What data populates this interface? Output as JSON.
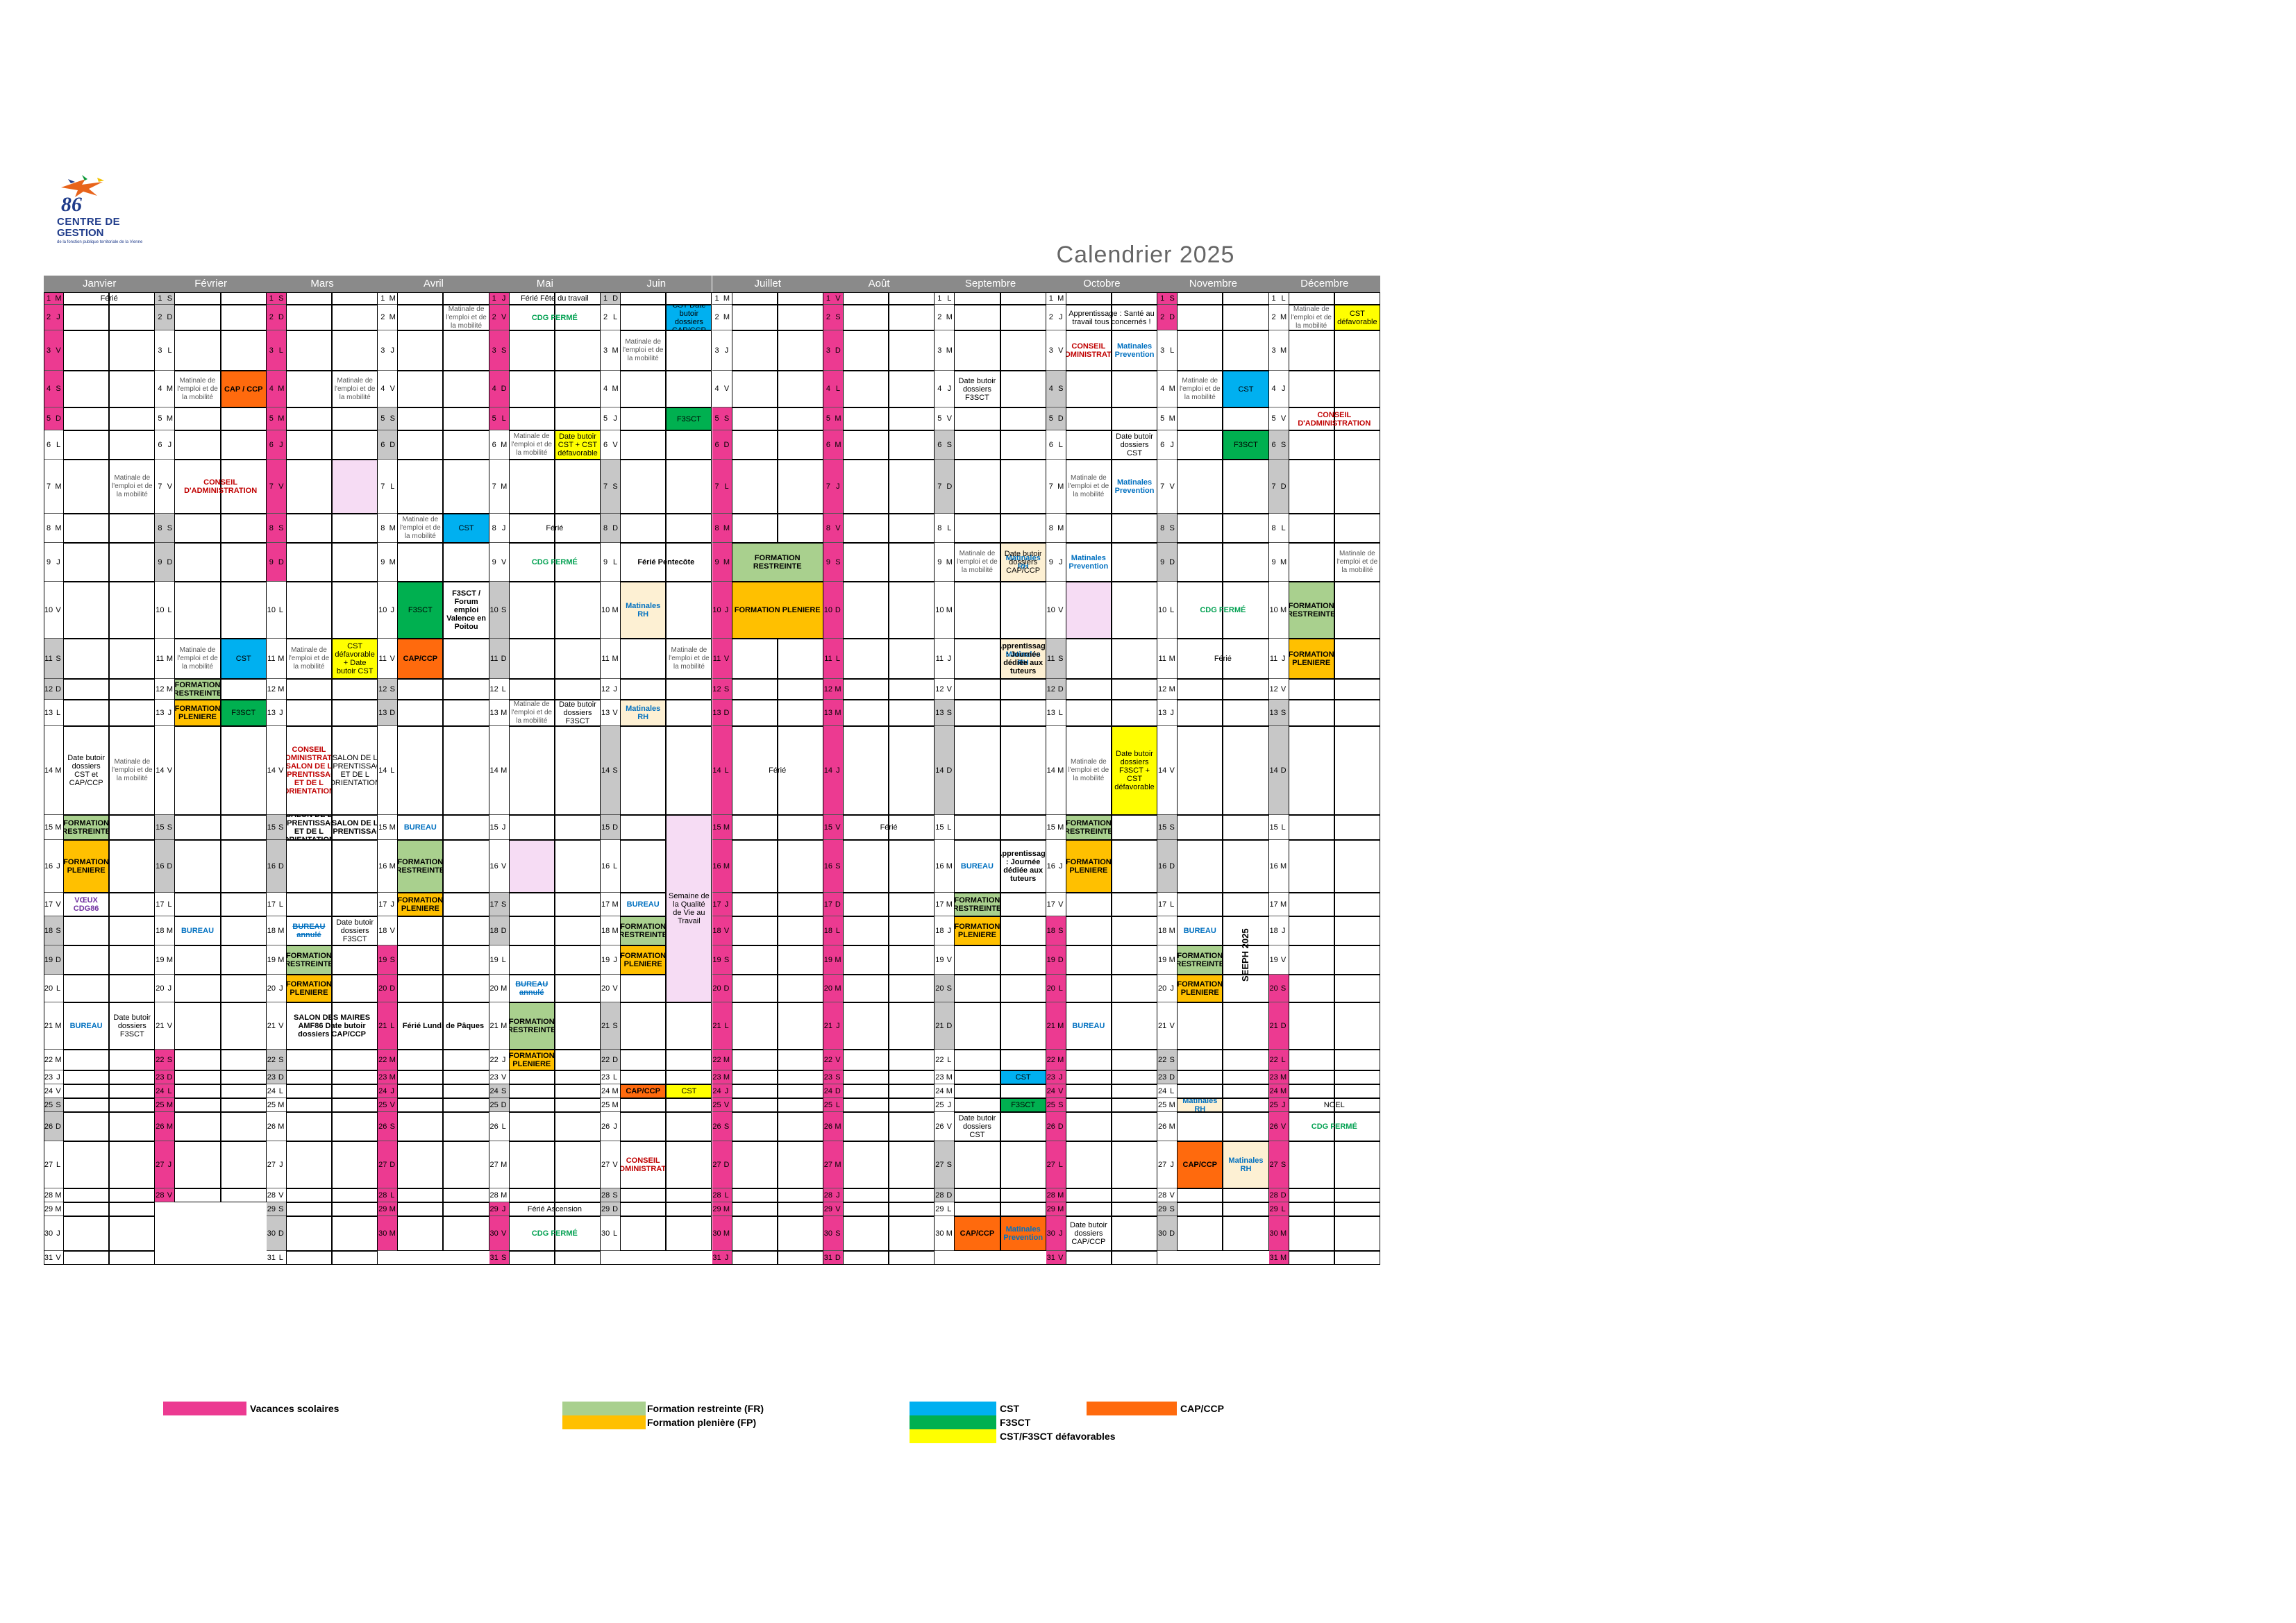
{
  "logo": {
    "number": "86",
    "line1": "CENTRE DE",
    "line2": "GESTION",
    "line3": "de la fonction publique territoriale de la Vienne"
  },
  "title": "Calendrier  2025",
  "months": [
    "Janvier",
    "Février",
    "Mars",
    "Avril",
    "Mai",
    "Juin",
    "Juillet",
    "Août",
    "Septembre",
    "Octobre",
    "Novembre",
    "Décembre"
  ],
  "colors": {
    "vacances": "#ec3a91",
    "fr": "#a9d08e",
    "fp": "#ffc000",
    "cst": "#00b0f0",
    "f3sct": "#00b050",
    "cap": "#ff6a0d",
    "def": "#ffff00",
    "weekend": "#c7c7c7"
  },
  "events": [
    {
      "m": 0,
      "d": 1,
      "col": "a",
      "text": "Férié",
      "cls": "",
      "span": 1,
      "wide": true
    },
    {
      "m": 0,
      "d": 7,
      "col": "b",
      "text": "Matinale de l'emploi et de la mobilité",
      "cls": "gry"
    },
    {
      "m": 0,
      "d": 14,
      "col": "a",
      "text": "Date butoir dossiers CST et CAP/CCP",
      "cls": ""
    },
    {
      "m": 0,
      "d": 14,
      "col": "b",
      "text": "Matinale de l'emploi et de la mobilité",
      "cls": "gry"
    },
    {
      "m": 0,
      "d": 15,
      "col": "a",
      "text": "FORMATION RESTREINTE",
      "cls": "fr b"
    },
    {
      "m": 0,
      "d": 16,
      "col": "a",
      "text": "FORMATION PLENIERE",
      "cls": "fp b"
    },
    {
      "m": 0,
      "d": 17,
      "col": "a",
      "text": "VŒUX CDG86",
      "cls": "pur"
    },
    {
      "m": 0,
      "d": 21,
      "col": "a",
      "text": "BUREAU",
      "cls": "blu"
    },
    {
      "m": 0,
      "d": 21,
      "col": "b",
      "text": "Date butoir dossiers F3SCT",
      "cls": ""
    },
    {
      "m": 1,
      "d": 4,
      "col": "a",
      "text": "Matinale de l'emploi et de la mobilité",
      "cls": "gry"
    },
    {
      "m": 1,
      "d": 4,
      "col": "b",
      "text": "CAP / CCP",
      "cls": "cap b"
    },
    {
      "m": 1,
      "d": 7,
      "col": "a",
      "text": "CONSEIL D'ADMINISTRATION",
      "cls": "red",
      "wide": true
    },
    {
      "m": 1,
      "d": 11,
      "col": "a",
      "text": "Matinale de l'emploi et de la mobilité",
      "cls": "gry"
    },
    {
      "m": 1,
      "d": 11,
      "col": "b",
      "text": "CST",
      "cls": "cst"
    },
    {
      "m": 1,
      "d": 12,
      "col": "a",
      "text": "FORMATION RESTREINTE",
      "cls": "fr b"
    },
    {
      "m": 1,
      "d": 13,
      "col": "a",
      "text": "FORMATION PLENIERE",
      "cls": "fp b"
    },
    {
      "m": 1,
      "d": 13,
      "col": "b",
      "text": "F3SCT",
      "cls": "f3"
    },
    {
      "m": 1,
      "d": 18,
      "col": "a",
      "text": "BUREAU",
      "cls": "blu"
    },
    {
      "m": 2,
      "d": 4,
      "col": "b",
      "text": "Matinale de l'emploi et de la mobilité",
      "cls": "gry"
    },
    {
      "m": 2,
      "d": 7,
      "col": "b",
      "text": "",
      "cls": "pk"
    },
    {
      "m": 2,
      "d": 11,
      "col": "a",
      "text": "Matinale de l'emploi et de la mobilité",
      "cls": "gry",
      "half": true
    },
    {
      "m": 2,
      "d": 11,
      "col": "b",
      "text": "CST défavorable + Date butoir CST",
      "cls": "def"
    },
    {
      "m": 2,
      "d": 14,
      "col": "a",
      "text": "CONSEIL D'ADMINISTRATION SALON DE L APPRENTISSAGE ET DE L ORIENTATION",
      "cls": "red"
    },
    {
      "m": 2,
      "d": 14,
      "col": "b",
      "text": "SALON DE L APPRENTISSAGE ET DE L ORIENTATION",
      "cls": ""
    },
    {
      "m": 2,
      "d": 15,
      "col": "a",
      "text": "SALON DE L APPRENTISSAGE ET DE L ORIENTATION",
      "cls": "b"
    },
    {
      "m": 2,
      "d": 15,
      "col": "b",
      "text": "SALON DE L APPRENTISSAGE",
      "cls": "b"
    },
    {
      "m": 2,
      "d": 18,
      "col": "a",
      "text": "BUREAU annulé",
      "cls": "blu strike"
    },
    {
      "m": 2,
      "d": 18,
      "col": "b",
      "text": "Date butoir dossiers F3SCT",
      "cls": ""
    },
    {
      "m": 2,
      "d": 19,
      "col": "a",
      "text": "FORMATION RESTREINTE",
      "cls": "fr b"
    },
    {
      "m": 2,
      "d": 20,
      "col": "a",
      "text": "FORMATION PLENIERE",
      "cls": "fp b"
    },
    {
      "m": 2,
      "d": 21,
      "col": "a",
      "text": "SALON DES MAIRES AMF86 Date butoir dossiers CAP/CCP",
      "cls": "b",
      "wide": true
    },
    {
      "m": 3,
      "d": 2,
      "col": "b",
      "text": "Matinale de l'emploi et de la mobilité",
      "cls": "gry"
    },
    {
      "m": 3,
      "d": 8,
      "col": "a",
      "text": "Matinale de l'emploi et de la mobilité",
      "cls": "gry"
    },
    {
      "m": 3,
      "d": 8,
      "col": "b",
      "text": "CST",
      "cls": "cst"
    },
    {
      "m": 3,
      "d": 10,
      "col": "a",
      "text": "F3SCT",
      "cls": "f3"
    },
    {
      "m": 3,
      "d": 10,
      "col": "b",
      "text": "F3SCT / Forum emploi Valence en Poitou",
      "cls": "b"
    },
    {
      "m": 3,
      "d": 11,
      "col": "a",
      "text": "CAP/CCP",
      "cls": "cap b"
    },
    {
      "m": 3,
      "d": 15,
      "col": "a",
      "text": "BUREAU",
      "cls": "blu"
    },
    {
      "m": 3,
      "d": 16,
      "col": "a",
      "text": "FORMATION RESTREINTE",
      "cls": "fr b"
    },
    {
      "m": 3,
      "d": 17,
      "col": "a",
      "text": "FORMATION PLENIERE",
      "cls": "fp b"
    },
    {
      "m": 3,
      "d": 21,
      "col": "a",
      "text": "Férié Lundi de Pâques",
      "cls": "b",
      "wide": true
    },
    {
      "m": 4,
      "d": 1,
      "col": "a",
      "text": "Férié Fête du travail",
      "cls": "",
      "wide": true
    },
    {
      "m": 4,
      "d": 2,
      "col": "a",
      "text": "CDG FERMÉ",
      "cls": "grn",
      "wide": true
    },
    {
      "m": 4,
      "d": 6,
      "col": "a",
      "text": "Matinale de l'emploi et de la mobilité",
      "cls": "gry"
    },
    {
      "m": 4,
      "d": 6,
      "col": "b",
      "text": "Date butoir CST + CST défavorable",
      "cls": "def"
    },
    {
      "m": 4,
      "d": 8,
      "col": "a",
      "text": "Férié",
      "cls": "",
      "wide": true
    },
    {
      "m": 4,
      "d": 9,
      "col": "a",
      "text": "CDG FERMÉ",
      "cls": "grn",
      "wide": true
    },
    {
      "m": 4,
      "d": 13,
      "col": "a",
      "text": "Matinale de l'emploi et de la mobilité",
      "cls": "gry"
    },
    {
      "m": 4,
      "d": 13,
      "col": "b",
      "text": "Date butoir dossiers F3SCT",
      "cls": ""
    },
    {
      "m": 4,
      "d": 16,
      "col": "a",
      "text": "",
      "cls": "pk"
    },
    {
      "m": 4,
      "d": 20,
      "col": "a",
      "text": "BUREAU annulé",
      "cls": "blu strike"
    },
    {
      "m": 4,
      "d": 21,
      "col": "a",
      "text": "FORMATION RESTREINTE",
      "cls": "fr b"
    },
    {
      "m": 4,
      "d": 22,
      "col": "a",
      "text": "FORMATION PLENIERE",
      "cls": "fp b"
    },
    {
      "m": 4,
      "d": 29,
      "col": "a",
      "text": "Férié Ascension",
      "cls": "",
      "wide": true
    },
    {
      "m": 4,
      "d": 30,
      "col": "a",
      "text": "CDG FERMÉ",
      "cls": "grn",
      "wide": true
    },
    {
      "m": 5,
      "d": 2,
      "col": "b",
      "text": "CST Date butoir dossiers CAP/CCP",
      "cls": "cst"
    },
    {
      "m": 5,
      "d": 3,
      "col": "a",
      "text": "Matinale de l'emploi et de la mobilité",
      "cls": "gry"
    },
    {
      "m": 5,
      "d": 5,
      "col": "b",
      "text": "F3SCT",
      "cls": "f3"
    },
    {
      "m": 5,
      "d": 9,
      "col": "a",
      "text": "Férié Pentecôte",
      "cls": "b",
      "wide": true
    },
    {
      "m": 5,
      "d": 10,
      "col": "a",
      "text": "Matinales RH",
      "cls": "rh blu"
    },
    {
      "m": 5,
      "d": 11,
      "col": "b",
      "text": "Matinale de l'emploi et de la mobilité",
      "cls": "gry"
    },
    {
      "m": 5,
      "d": 13,
      "col": "a",
      "text": "Matinales RH",
      "cls": "rh blu"
    },
    {
      "m": 5,
      "d": 17,
      "col": "a",
      "text": "BUREAU",
      "cls": "blu"
    },
    {
      "m": 5,
      "d": 18,
      "col": "a",
      "text": "FORMATION RESTREINTE",
      "cls": "fr b"
    },
    {
      "m": 5,
      "d": 19,
      "col": "a",
      "text": "FORMATION PLENIERE",
      "cls": "fp b"
    },
    {
      "m": 5,
      "d": 24,
      "col": "a",
      "text": "CAP/CCP",
      "cls": "cap b"
    },
    {
      "m": 5,
      "d": 24,
      "col": "b",
      "text": "CST",
      "cls": "def"
    },
    {
      "m": 5,
      "d": 27,
      "col": "a",
      "text": "CONSEIL D'ADMINISTRATION",
      "cls": "red"
    },
    {
      "m": 6,
      "d": 9,
      "col": "a",
      "text": "FORMATION RESTREINTE",
      "cls": "fr b",
      "wide": true
    },
    {
      "m": 6,
      "d": 10,
      "col": "a",
      "text": "FORMATION PLENIERE",
      "cls": "fp b",
      "wide": true
    },
    {
      "m": 6,
      "d": 14,
      "col": "a",
      "text": "Férié",
      "cls": "",
      "wide": true
    },
    {
      "m": 7,
      "d": 15,
      "col": "a",
      "text": "Férié",
      "cls": "",
      "wide": true
    },
    {
      "m": 8,
      "d": 4,
      "col": "a",
      "text": "Date butoir dossiers F3SCT",
      "cls": ""
    },
    {
      "m": 8,
      "d": 9,
      "col": "a",
      "text": "Matinale de l'emploi et de la mobilité",
      "cls": "gry"
    },
    {
      "m": 8,
      "d": 9,
      "col": "b",
      "text": "Matinales RH",
      "cls": "rh blu"
    },
    {
      "m": 8,
      "d": 11,
      "col": "b",
      "text": "Matinales RH",
      "cls": "rh blu"
    },
    {
      "m": 8,
      "d": 16,
      "col": "a",
      "text": "BUREAU",
      "cls": "blu"
    },
    {
      "m": 8,
      "d": 17,
      "col": "a",
      "text": "FORMATION RESTREINTE",
      "cls": "fr b"
    },
    {
      "m": 8,
      "d": 18,
      "col": "a",
      "text": "FORMATION PLENIERE",
      "cls": "fp b"
    },
    {
      "m": 8,
      "d": 23,
      "col": "b",
      "text": "CST",
      "cls": "cst"
    },
    {
      "m": 8,
      "d": 25,
      "col": "b",
      "text": "F3SCT",
      "cls": "f3"
    },
    {
      "m": 8,
      "d": 26,
      "col": "a",
      "text": "Date butoir dossiers CST",
      "cls": ""
    },
    {
      "m": 8,
      "d": 30,
      "col": "a",
      "text": "CAP/CCP",
      "cls": "cap b"
    },
    {
      "m": 8,
      "d": 30,
      "col": "b",
      "text": "",
      "cls": "cap"
    },
    {
      "m": 9,
      "d": 2,
      "col": "a",
      "text": "Apprentissage : Santé au travail tous concernés !",
      "cls": "",
      "wide": true
    },
    {
      "m": 9,
      "d": 3,
      "col": "a",
      "text": "CONSEIL D'ADMINISTRATION",
      "cls": "red"
    },
    {
      "m": 9,
      "d": 3,
      "col": "b",
      "text": "Matinales Prevention",
      "cls": "blu"
    },
    {
      "m": 9,
      "d": 7,
      "col": "a",
      "text": "Matinale de l'emploi et de la mobilité",
      "cls": "gry"
    },
    {
      "m": 9,
      "d": 7,
      "col": "b",
      "text": "Matinales Prevention",
      "cls": "blu"
    },
    {
      "m": 9,
      "d": 9,
      "col": "a",
      "text": "Matinales Prevention",
      "cls": "blu"
    },
    {
      "m": 9,
      "d": 10,
      "col": "a",
      "text": "",
      "cls": "pk"
    },
    {
      "m": 9,
      "d": 14,
      "col": "a",
      "text": "Matinale de l'emploi et de la mobilité",
      "cls": "gry"
    },
    {
      "m": 9,
      "d": 14,
      "col": "b",
      "text": "Date butoir dossiers F3SCT + CST défavorable",
      "cls": "def"
    },
    {
      "m": 9,
      "d": 15,
      "col": "a",
      "text": "FORMATION RESTREINTE",
      "cls": "fr b"
    },
    {
      "m": 9,
      "d": 16,
      "col": "a",
      "text": "FORMATION PLENIERE",
      "cls": "fp b"
    },
    {
      "m": 9,
      "d": 21,
      "col": "a",
      "text": "BUREAU",
      "cls": "blu"
    },
    {
      "m": 9,
      "d": 30,
      "col": "a",
      "text": "Date butoir dossiers CAP/CCP",
      "cls": ""
    },
    {
      "m": 10,
      "d": 4,
      "col": "a",
      "text": "Matinale de l'emploi et de la mobilité",
      "cls": "gry"
    },
    {
      "m": 10,
      "d": 4,
      "col": "b",
      "text": "CST",
      "cls": "cst"
    },
    {
      "m": 10,
      "d": 6,
      "col": "b",
      "text": "F3SCT",
      "cls": "f3"
    },
    {
      "m": 10,
      "d": 10,
      "col": "a",
      "text": "CDG FERMÉ",
      "cls": "grn",
      "wide": true
    },
    {
      "m": 10,
      "d": 11,
      "col": "a",
      "text": "Férié",
      "cls": "",
      "wide": true
    },
    {
      "m": 10,
      "d": 18,
      "col": "a",
      "text": "BUREAU",
      "cls": "blu"
    },
    {
      "m": 10,
      "d": 19,
      "col": "a",
      "text": "FORMATION RESTREINTE",
      "cls": "fr b"
    },
    {
      "m": 10,
      "d": 20,
      "col": "a",
      "text": "FORMATION PLENIERE",
      "cls": "fp b"
    },
    {
      "m": 10,
      "d": 25,
      "col": "a",
      "text": "Matinales RH",
      "cls": "rh blu"
    },
    {
      "m": 10,
      "d": 27,
      "col": "a",
      "text": "CAP/CCP",
      "cls": "cap b"
    },
    {
      "m": 10,
      "d": 27,
      "col": "b",
      "text": "Matinales RH",
      "cls": "rh blu"
    },
    {
      "m": 11,
      "d": 2,
      "col": "a",
      "text": "Matinale de l'emploi et de la mobilité",
      "cls": "gry"
    },
    {
      "m": 11,
      "d": 2,
      "col": "b",
      "text": "CST défavorable",
      "cls": "def"
    },
    {
      "m": 11,
      "d": 5,
      "col": "a",
      "text": "CONSEIL D'ADMINISTRATION",
      "cls": "red",
      "wide": true
    },
    {
      "m": 11,
      "d": 9,
      "col": "b",
      "text": "Matinale de l'emploi et de la mobilité",
      "cls": "gry"
    },
    {
      "m": 11,
      "d": 10,
      "col": "a",
      "text": "FORMATION RESTREINTE",
      "cls": "fr b"
    },
    {
      "m": 11,
      "d": 11,
      "col": "a",
      "text": "FORMATION PLENIERE",
      "cls": "fp b"
    },
    {
      "m": 11,
      "d": 25,
      "col": "a",
      "text": "NOEL",
      "cls": "",
      "wide": true
    },
    {
      "m": 11,
      "d": 26,
      "col": "a",
      "text": "CDG FERMÉ",
      "cls": "grn",
      "wide": true
    }
  ],
  "spanning": [
    {
      "m": 5,
      "col": "b",
      "d0": 15,
      "d1": 20,
      "text": "Semaine de la Qualité de Vie au Travail",
      "cls": "pk"
    },
    {
      "m": 8,
      "col": "b",
      "d0": 11,
      "d1": 11,
      "text": "Apprentissage : Journée dédiée aux tuteurs",
      "cls": "b"
    },
    {
      "m": 8,
      "col": "b",
      "d0": 16,
      "d1": 16,
      "text": "Apprentissage : Journée dédiée aux tuteurs",
      "cls": "b"
    },
    {
      "m": 8,
      "col": "b",
      "d0": 9,
      "d1": 9,
      "text": "Date butoir dossiers CAP/CCP",
      "cls": "",
      "third": true
    },
    {
      "m": 8,
      "col": "b",
      "d0": 30,
      "d1": 30,
      "text": "Matinales Prevention",
      "cls": "blu",
      "third": true
    },
    {
      "m": 9,
      "col": "b",
      "d0": 6,
      "d1": 6,
      "text": "Date butoir dossiers CST",
      "cls": ""
    },
    {
      "m": 10,
      "col": "b",
      "d0": 16,
      "d1": 22,
      "text": "SEEPH 2025",
      "cls": "b",
      "vertical": true
    }
  ],
  "legend": [
    {
      "label": "Vacances scolaires",
      "color": "#ec3a91"
    },
    {
      "label": "Formation restreinte (FR)",
      "color": "#a9d08e"
    },
    {
      "label": "Formation plenière (FP)",
      "color": "#ffc000"
    },
    {
      "label": "CST",
      "color": "#00b0f0"
    },
    {
      "label": "F3SCT",
      "color": "#00b050"
    },
    {
      "label": "CST/F3SCT défavorables",
      "color": "#ffff00"
    },
    {
      "label": "CAP/CCP",
      "color": "#ff6a0d"
    }
  ],
  "vacances": [
    [
      1,
      2,
      3,
      4,
      5
    ],
    [
      22,
      23,
      24,
      25,
      26,
      27,
      28
    ],
    [
      1,
      2,
      3,
      4,
      5,
      6,
      7,
      8,
      9
    ],
    [
      19,
      20,
      21,
      22,
      23,
      24,
      25,
      26,
      27,
      28,
      29,
      30
    ],
    [
      1,
      2,
      3,
      4,
      5,
      29,
      30,
      31
    ],
    [],
    [
      5,
      6,
      7,
      8,
      9,
      10,
      11,
      12,
      13,
      14,
      15,
      16,
      17,
      18,
      19,
      20,
      21,
      22,
      23,
      24,
      25,
      26,
      27,
      28,
      29,
      30,
      31
    ],
    [
      1,
      2,
      3,
      4,
      5,
      6,
      7,
      8,
      9,
      10,
      11,
      12,
      13,
      14,
      15,
      16,
      17,
      18,
      19,
      20,
      21,
      22,
      23,
      24,
      25,
      26,
      27,
      28,
      29,
      30,
      31
    ],
    [],
    [
      18,
      19,
      20,
      21,
      22,
      23,
      24,
      25,
      26,
      27,
      28,
      29,
      30,
      31
    ],
    [
      1,
      2
    ],
    [
      20,
      21,
      22,
      23,
      24,
      25,
      26,
      27,
      28,
      29,
      30,
      31
    ]
  ]
}
